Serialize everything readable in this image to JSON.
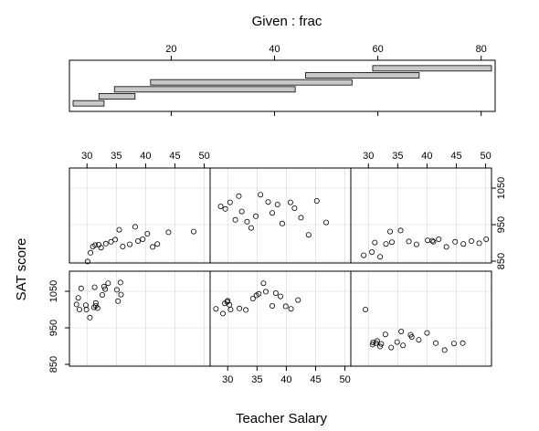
{
  "chart_data": {
    "type": "scatter",
    "given_label": "Given : frac",
    "xlabel": "Teacher Salary",
    "ylabel": "SAT score",
    "given_ticks": [
      20,
      40,
      60,
      80
    ],
    "given_axis_range": [
      1,
      82
    ],
    "given_intervals": [
      [
        1,
        7
      ],
      [
        6,
        13
      ],
      [
        9,
        44
      ],
      [
        16,
        55
      ],
      [
        46,
        68
      ],
      [
        59,
        82
      ]
    ],
    "x_ticks_top": [
      30,
      35,
      40,
      45,
      50
    ],
    "x_ticks_bottom": [
      30,
      35,
      40,
      45,
      50
    ],
    "y_ticks": [
      850,
      950,
      1050
    ],
    "xlim": [
      27,
      51
    ],
    "ylim": [
      845,
      1105
    ],
    "panels": [
      {
        "interval": 1,
        "points": [
          [
            28.5,
            1032
          ],
          [
            29.0,
            1058
          ],
          [
            28.2,
            1014
          ],
          [
            28.7,
            1000
          ],
          [
            29.8,
            1012
          ],
          [
            29.9,
            1000
          ],
          [
            31.5,
            1018
          ],
          [
            31.2,
            1006
          ],
          [
            31.8,
            1004
          ],
          [
            31.5,
            1010
          ],
          [
            30.5,
            978
          ],
          [
            31.3,
            1061
          ],
          [
            33.6,
            1072
          ],
          [
            32.6,
            1040
          ],
          [
            35.3,
            1023
          ],
          [
            35.8,
            1041
          ],
          [
            35.1,
            1054
          ],
          [
            35.7,
            1074
          ],
          [
            33.1,
            1056
          ],
          [
            32.9,
            1063
          ]
        ]
      },
      {
        "interval": 2,
        "points": [
          [
            28.0,
            1002
          ],
          [
            29.2,
            989
          ],
          [
            29.5,
            1017
          ],
          [
            30.3,
            1013
          ],
          [
            30.5,
            1000
          ],
          [
            29.9,
            1021
          ],
          [
            32.0,
            1003
          ],
          [
            33.1,
            999
          ],
          [
            34.3,
            1030
          ],
          [
            34.9,
            1039
          ],
          [
            35.3,
            1043
          ],
          [
            36.5,
            1049
          ],
          [
            37.6,
            1010
          ],
          [
            39.9,
            1009
          ],
          [
            40.8,
            1002
          ],
          [
            42.0,
            1026
          ],
          [
            38.2,
            1045
          ],
          [
            39.0,
            1036
          ],
          [
            36.1,
            1072
          ],
          [
            30.0,
            1024
          ]
        ]
      },
      {
        "interval": 3,
        "points": [
          [
            29.5,
            1000
          ],
          [
            30.7,
            904
          ],
          [
            31.3,
            908
          ],
          [
            30.8,
            910
          ],
          [
            32.0,
            899
          ],
          [
            32.2,
            906
          ],
          [
            31.5,
            914
          ],
          [
            32.9,
            932
          ],
          [
            33.9,
            896
          ],
          [
            34.9,
            911
          ],
          [
            35.9,
            902
          ],
          [
            35.6,
            940
          ],
          [
            37.2,
            931
          ],
          [
            37.4,
            925
          ],
          [
            38.6,
            917
          ],
          [
            40.0,
            936
          ],
          [
            41.5,
            908
          ],
          [
            43.0,
            889
          ],
          [
            44.6,
            907
          ],
          [
            46.1,
            908
          ]
        ]
      },
      {
        "interval": 4,
        "points": [
          [
            30.1,
            849
          ],
          [
            30.6,
            873
          ],
          [
            31.0,
            890
          ],
          [
            31.4,
            894
          ],
          [
            32.0,
            895
          ],
          [
            32.4,
            887
          ],
          [
            33.2,
            898
          ],
          [
            34.1,
            903
          ],
          [
            34.8,
            909
          ],
          [
            35.5,
            936
          ],
          [
            36.1,
            890
          ],
          [
            37.3,
            896
          ],
          [
            38.2,
            944
          ],
          [
            38.7,
            905
          ],
          [
            39.5,
            910
          ],
          [
            40.3,
            925
          ],
          [
            41.2,
            889
          ],
          [
            42.0,
            897
          ],
          [
            43.9,
            929
          ],
          [
            48.2,
            931
          ]
        ]
      },
      {
        "interval": 5,
        "points": [
          [
            28.8,
            1000
          ],
          [
            29.6,
            993
          ],
          [
            30.4,
            1011
          ],
          [
            31.3,
            963
          ],
          [
            31.9,
            1028
          ],
          [
            32.4,
            986
          ],
          [
            33.3,
            958
          ],
          [
            34.0,
            941
          ],
          [
            34.8,
            973
          ],
          [
            35.6,
            1032
          ],
          [
            36.9,
            1012
          ],
          [
            37.6,
            982
          ],
          [
            38.5,
            1005
          ],
          [
            39.3,
            953
          ],
          [
            40.7,
            1011
          ],
          [
            41.4,
            995
          ],
          [
            42.5,
            969
          ],
          [
            43.8,
            922
          ],
          [
            45.2,
            1015
          ],
          [
            46.8,
            956
          ]
        ]
      },
      {
        "interval": 6,
        "points": [
          [
            29.2,
            866
          ],
          [
            30.6,
            875
          ],
          [
            31.1,
            901
          ],
          [
            32.0,
            862
          ],
          [
            33.0,
            897
          ],
          [
            34.0,
            902
          ],
          [
            35.5,
            934
          ],
          [
            36.9,
            904
          ],
          [
            38.2,
            896
          ],
          [
            40.1,
            907
          ],
          [
            41.1,
            903
          ],
          [
            42.0,
            910
          ],
          [
            43.3,
            889
          ],
          [
            44.8,
            903
          ],
          [
            46.2,
            897
          ],
          [
            47.6,
            905
          ],
          [
            48.9,
            899
          ],
          [
            50.1,
            910
          ],
          [
            33.7,
            931
          ],
          [
            40.9,
            906
          ]
        ]
      }
    ]
  }
}
